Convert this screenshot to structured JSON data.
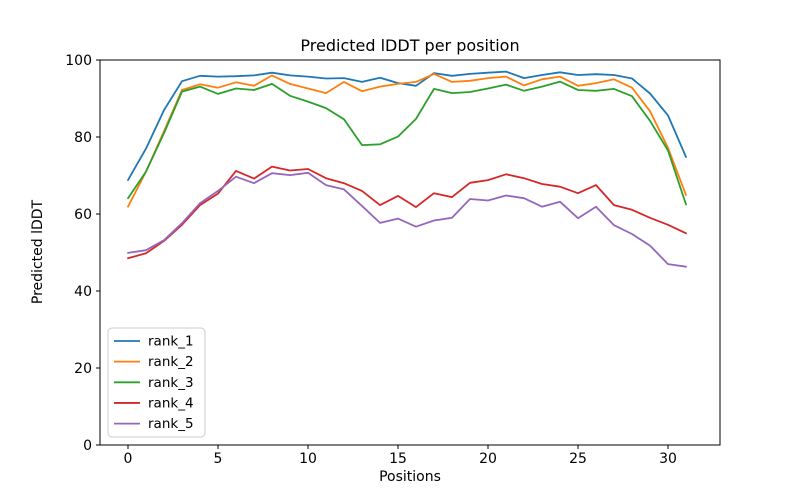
{
  "figure": {
    "background": "#ffffff",
    "spine_color": "#000000"
  },
  "chart_data": {
    "type": "line",
    "title": "Predicted lDDT per position",
    "xlabel": "Positions",
    "ylabel": "Predicted lDDT",
    "xlim": [
      -1.556,
      32.889
    ],
    "ylim": [
      0,
      100
    ],
    "xticks": [
      0,
      5,
      10,
      15,
      20,
      25,
      30
    ],
    "yticks": [
      0,
      20,
      40,
      60,
      80,
      100
    ],
    "grid": false,
    "legend_location": "lower left",
    "x": [
      0,
      1,
      2,
      3,
      4,
      5,
      6,
      7,
      8,
      9,
      10,
      11,
      12,
      13,
      14,
      15,
      16,
      17,
      18,
      19,
      20,
      21,
      22,
      23,
      24,
      25,
      26,
      27,
      28,
      29,
      30,
      31
    ],
    "series": [
      {
        "name": "rank_1",
        "color": "#1f77b4",
        "values": [
          68.8,
          77.0,
          87.0,
          94.5,
          95.9,
          95.7,
          95.8,
          96.0,
          96.7,
          96.0,
          95.7,
          95.2,
          95.3,
          94.3,
          95.4,
          94.0,
          93.3,
          96.6,
          95.9,
          96.4,
          96.7,
          97.0,
          95.3,
          96.1,
          96.8,
          96.1,
          96.3,
          96.1,
          95.2,
          91.3,
          85.6,
          74.8
        ]
      },
      {
        "name": "rank_2",
        "color": "#ff7f0e",
        "values": [
          61.9,
          71.0,
          81.5,
          92.2,
          93.7,
          92.8,
          94.2,
          93.3,
          96.0,
          93.8,
          92.6,
          91.4,
          94.3,
          91.9,
          93.1,
          93.8,
          94.3,
          96.4,
          94.3,
          94.6,
          95.3,
          95.7,
          93.4,
          95.0,
          95.7,
          93.3,
          94.0,
          95.0,
          92.8,
          86.7,
          77.2,
          64.9
        ]
      },
      {
        "name": "rank_3",
        "color": "#2ca02c",
        "values": [
          64.1,
          71.0,
          81.0,
          91.8,
          93.1,
          91.2,
          92.6,
          92.2,
          93.8,
          90.7,
          89.2,
          87.5,
          84.6,
          77.9,
          78.1,
          80.1,
          84.7,
          92.5,
          91.4,
          91.7,
          92.6,
          93.6,
          92.0,
          93.1,
          94.4,
          92.2,
          92.0,
          92.5,
          90.6,
          84.2,
          76.5,
          62.5
        ]
      },
      {
        "name": "rank_4",
        "color": "#d62728",
        "values": [
          48.5,
          49.8,
          53.0,
          57.2,
          62.3,
          65.3,
          71.2,
          69.2,
          72.3,
          71.3,
          71.7,
          69.3,
          68.0,
          66.0,
          62.3,
          64.7,
          61.8,
          65.4,
          64.4,
          68.1,
          68.8,
          70.3,
          69.3,
          67.8,
          67.1,
          65.4,
          67.5,
          62.3,
          61.1,
          59.0,
          57.2,
          55.0
        ]
      },
      {
        "name": "rank_5",
        "color": "#9467bd",
        "values": [
          49.9,
          50.6,
          53.2,
          57.6,
          62.8,
          66.0,
          69.7,
          68.0,
          70.6,
          70.1,
          70.7,
          67.5,
          66.4,
          62.1,
          57.7,
          58.8,
          56.7,
          58.3,
          59.0,
          63.9,
          63.5,
          64.8,
          64.1,
          61.9,
          63.2,
          58.9,
          61.9,
          57.1,
          54.8,
          51.8,
          47.0,
          46.3
        ]
      }
    ]
  }
}
